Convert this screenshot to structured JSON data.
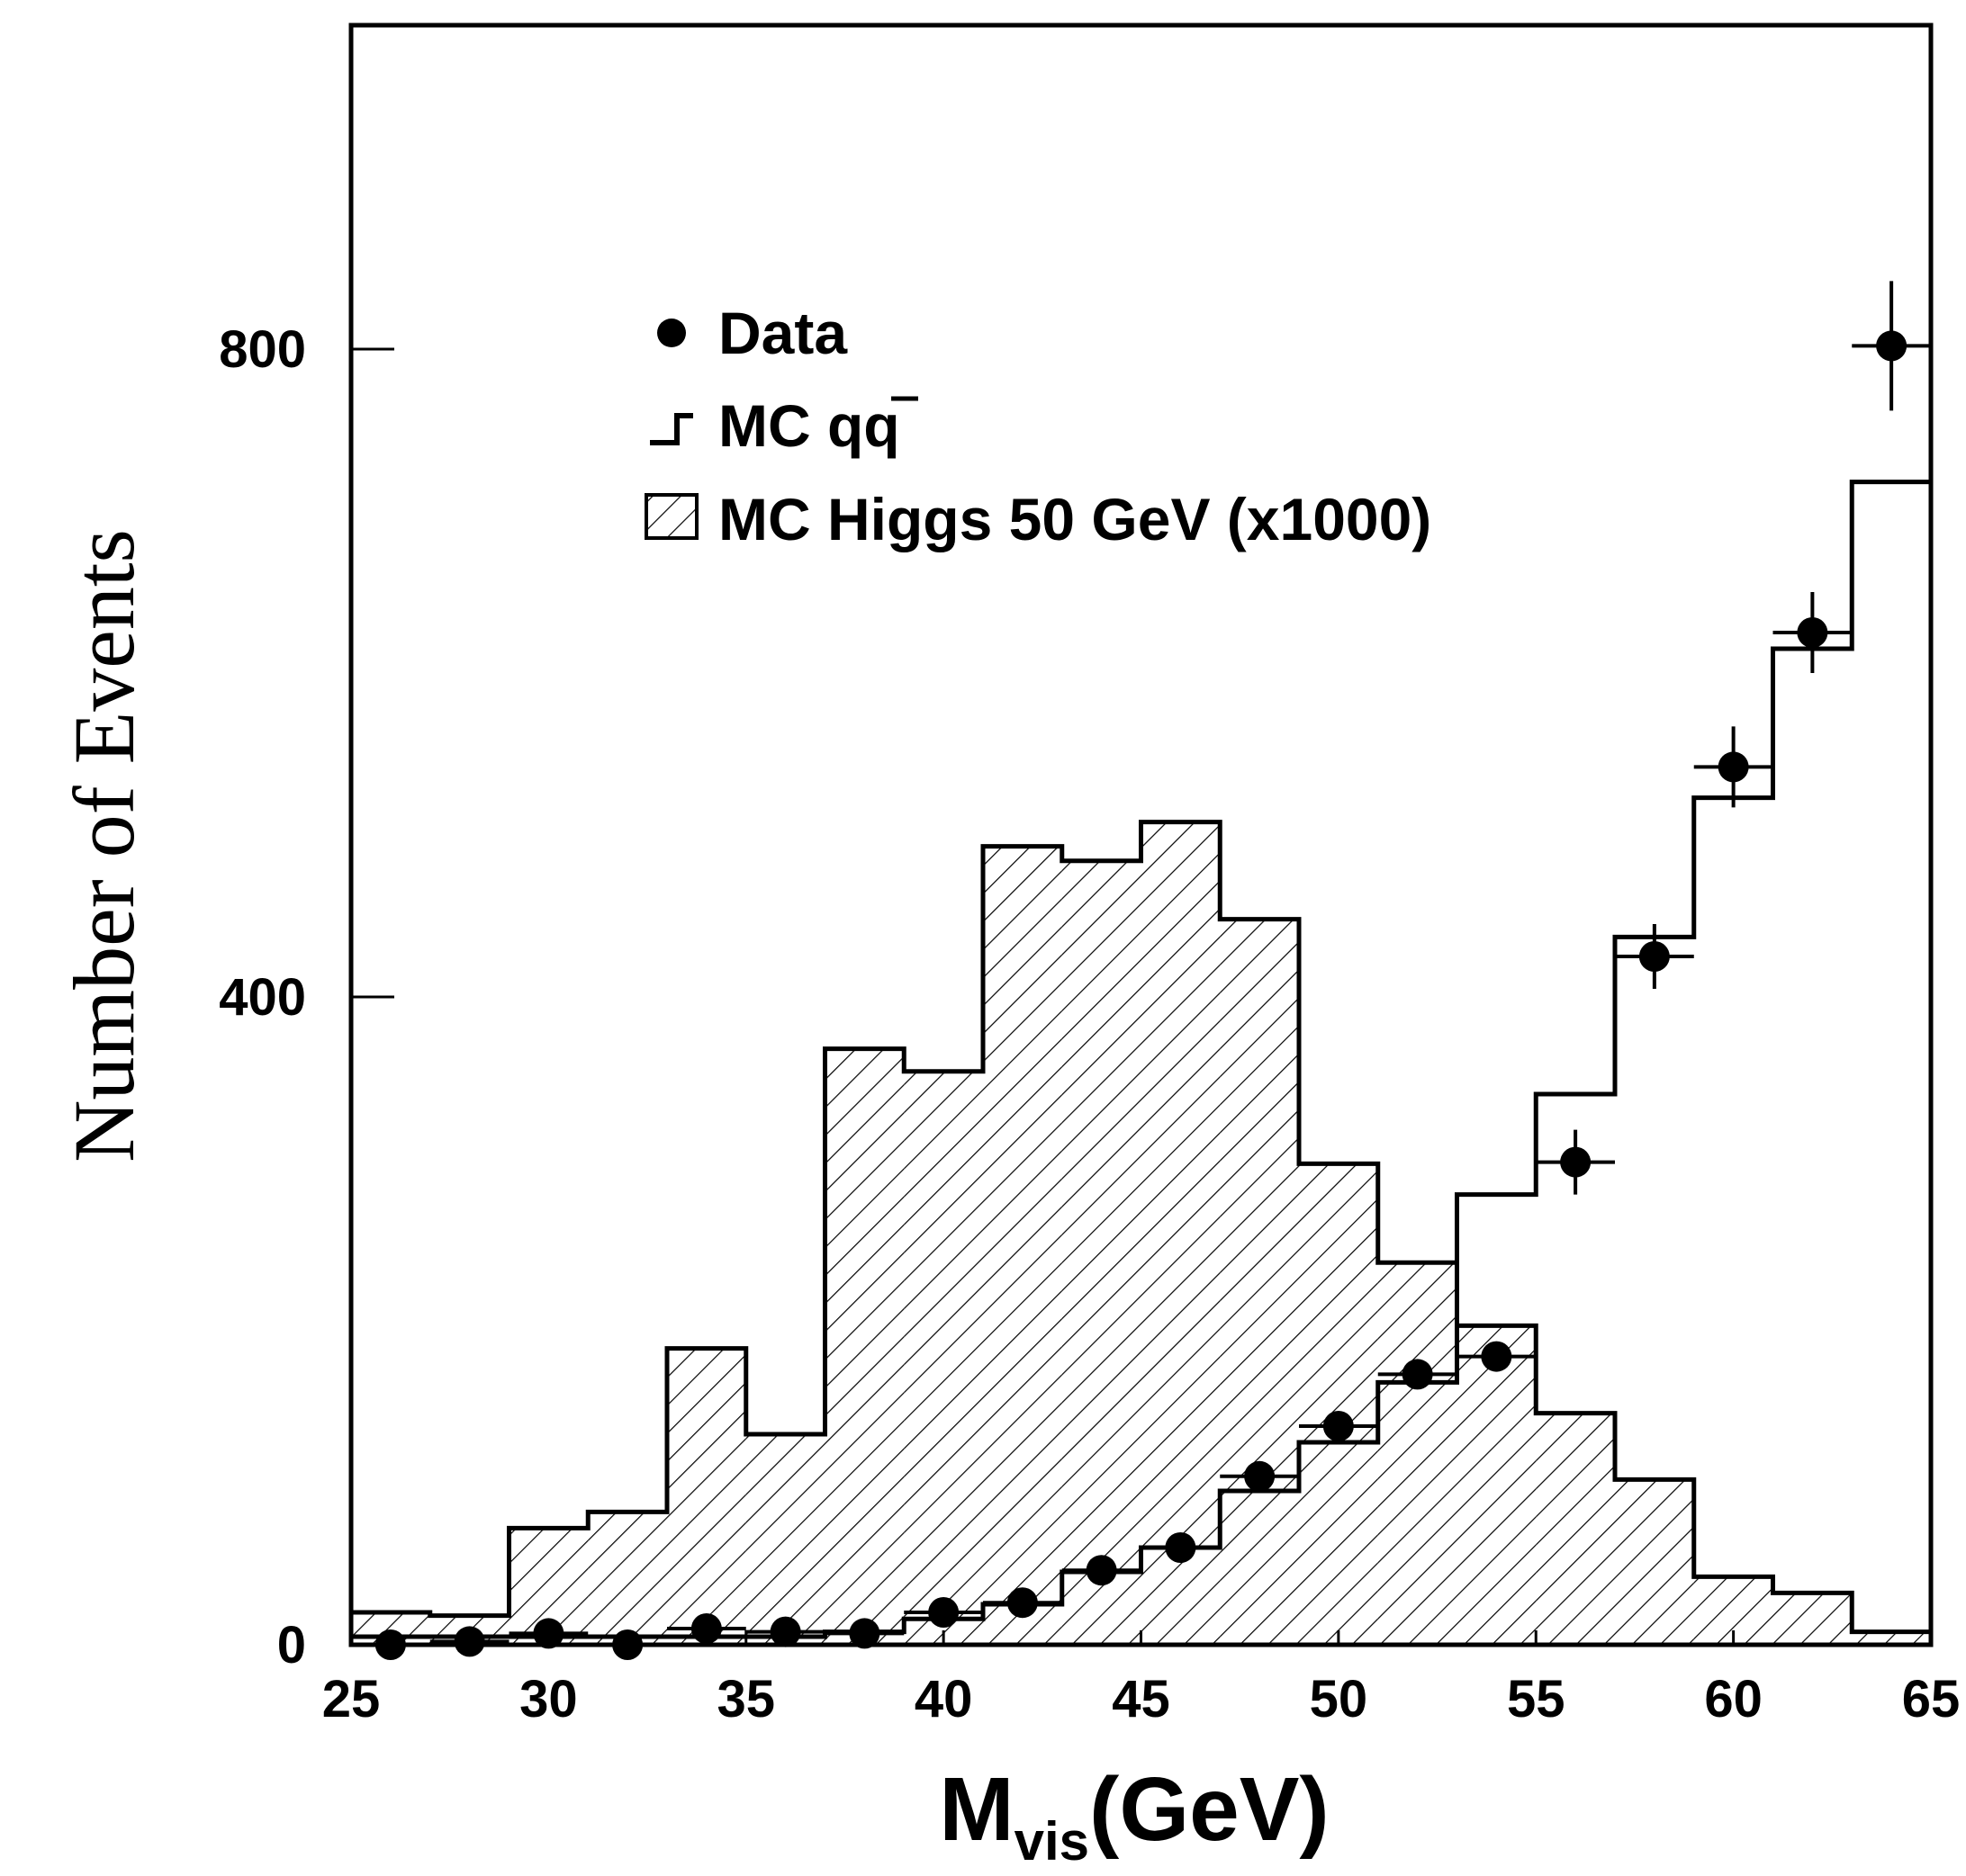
{
  "chart_data": {
    "type": "bar",
    "title": "",
    "xlabel": "M_vis(GeV)",
    "xlabel_main": "M",
    "xlabel_sub": "vis",
    "xlabel_unit": "(GeV)",
    "ylabel": "Number of Events",
    "xlim": [
      25,
      65
    ],
    "ylim": [
      0,
      1000
    ],
    "xticks": [
      25,
      30,
      35,
      40,
      45,
      50,
      55,
      60,
      65
    ],
    "yticks": [
      0,
      400,
      800
    ],
    "bin_edges": [
      25,
      27,
      29,
      31,
      33,
      35,
      37,
      39,
      41,
      43,
      45,
      47,
      49,
      51,
      53,
      55,
      57,
      59,
      61,
      63,
      65
    ],
    "series": [
      {
        "name": "MC Higgs 50 GeV (x1000)",
        "style": "hatched-histogram",
        "values": [
          20,
          18,
          72,
          82,
          183,
          130,
          368,
          354,
          493,
          484,
          508,
          448,
          297,
          236,
          197,
          143,
          102,
          42,
          32,
          8
        ]
      },
      {
        "name": "MC q̅q",
        "style": "step-histogram",
        "values": [
          5,
          5,
          5,
          5,
          5,
          5,
          8,
          16,
          25,
          45,
          60,
          95,
          125,
          162,
          278,
          340,
          437,
          523,
          615,
          718
        ]
      },
      {
        "name": "Data",
        "style": "points-with-errors",
        "x": [
          26,
          28,
          30,
          32,
          34,
          36,
          38,
          40,
          42,
          44,
          46,
          48,
          50,
          52,
          54,
          56,
          58,
          60,
          62,
          64
        ],
        "y": [
          0,
          2,
          7,
          0,
          10,
          8,
          7,
          20,
          26,
          46,
          60,
          104,
          135,
          167,
          178,
          298,
          425,
          542,
          625,
          802
        ],
        "yerr": [
          0,
          0,
          0,
          0,
          0,
          0,
          0,
          0,
          0,
          0,
          0,
          0,
          0,
          0,
          0,
          20,
          20,
          25,
          25,
          40
        ]
      }
    ],
    "legend": {
      "placement": "top-left",
      "entries": [
        {
          "symbol": "dot",
          "label": "Data"
        },
        {
          "symbol": "step",
          "label_main": "MC q",
          "label_bar": "q"
        },
        {
          "symbol": "hatch",
          "label": "MC Higgs 50 GeV (x1000)"
        }
      ]
    },
    "colors": {
      "ink": "#000000",
      "background": "#ffffff"
    }
  }
}
